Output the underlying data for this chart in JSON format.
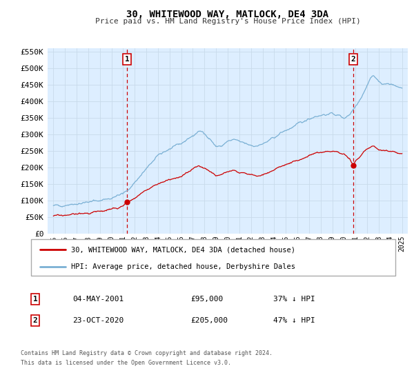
{
  "title": "30, WHITEWOOD WAY, MATLOCK, DE4 3DA",
  "subtitle": "Price paid vs. HM Land Registry's House Price Index (HPI)",
  "legend_label_red": "30, WHITEWOOD WAY, MATLOCK, DE4 3DA (detached house)",
  "legend_label_blue": "HPI: Average price, detached house, Derbyshire Dales",
  "footnote1": "Contains HM Land Registry data © Crown copyright and database right 2024.",
  "footnote2": "This data is licensed under the Open Government Licence v3.0.",
  "transaction1_date": "04-MAY-2001",
  "transaction1_price": "£95,000",
  "transaction1_hpi": "37% ↓ HPI",
  "transaction2_date": "23-OCT-2020",
  "transaction2_price": "£205,000",
  "transaction2_hpi": "47% ↓ HPI",
  "vline1_x": 2001.35,
  "vline2_x": 2020.8,
  "dot1_x": 2001.35,
  "dot1_y": 95000,
  "dot2_x": 2020.8,
  "dot2_y": 205000,
  "ylim": [
    0,
    560000
  ],
  "xlim": [
    1994.5,
    2025.5
  ],
  "yticks": [
    0,
    50000,
    100000,
    150000,
    200000,
    250000,
    300000,
    350000,
    400000,
    450000,
    500000,
    550000
  ],
  "ytick_labels": [
    "£0",
    "£50K",
    "£100K",
    "£150K",
    "£200K",
    "£250K",
    "£300K",
    "£350K",
    "£400K",
    "£450K",
    "£500K",
    "£550K"
  ],
  "xticks": [
    1995,
    1996,
    1997,
    1998,
    1999,
    2000,
    2001,
    2002,
    2003,
    2004,
    2005,
    2006,
    2007,
    2008,
    2009,
    2010,
    2011,
    2012,
    2013,
    2014,
    2015,
    2016,
    2017,
    2018,
    2019,
    2020,
    2021,
    2022,
    2023,
    2024,
    2025
  ],
  "red_color": "#cc0000",
  "blue_color": "#7ab0d4",
  "vline_color": "#cc0000",
  "dot_color": "#cc0000",
  "grid_color": "#c8daea",
  "plot_bg_color": "#ddeeff",
  "fig_bg_color": "#ffffff"
}
